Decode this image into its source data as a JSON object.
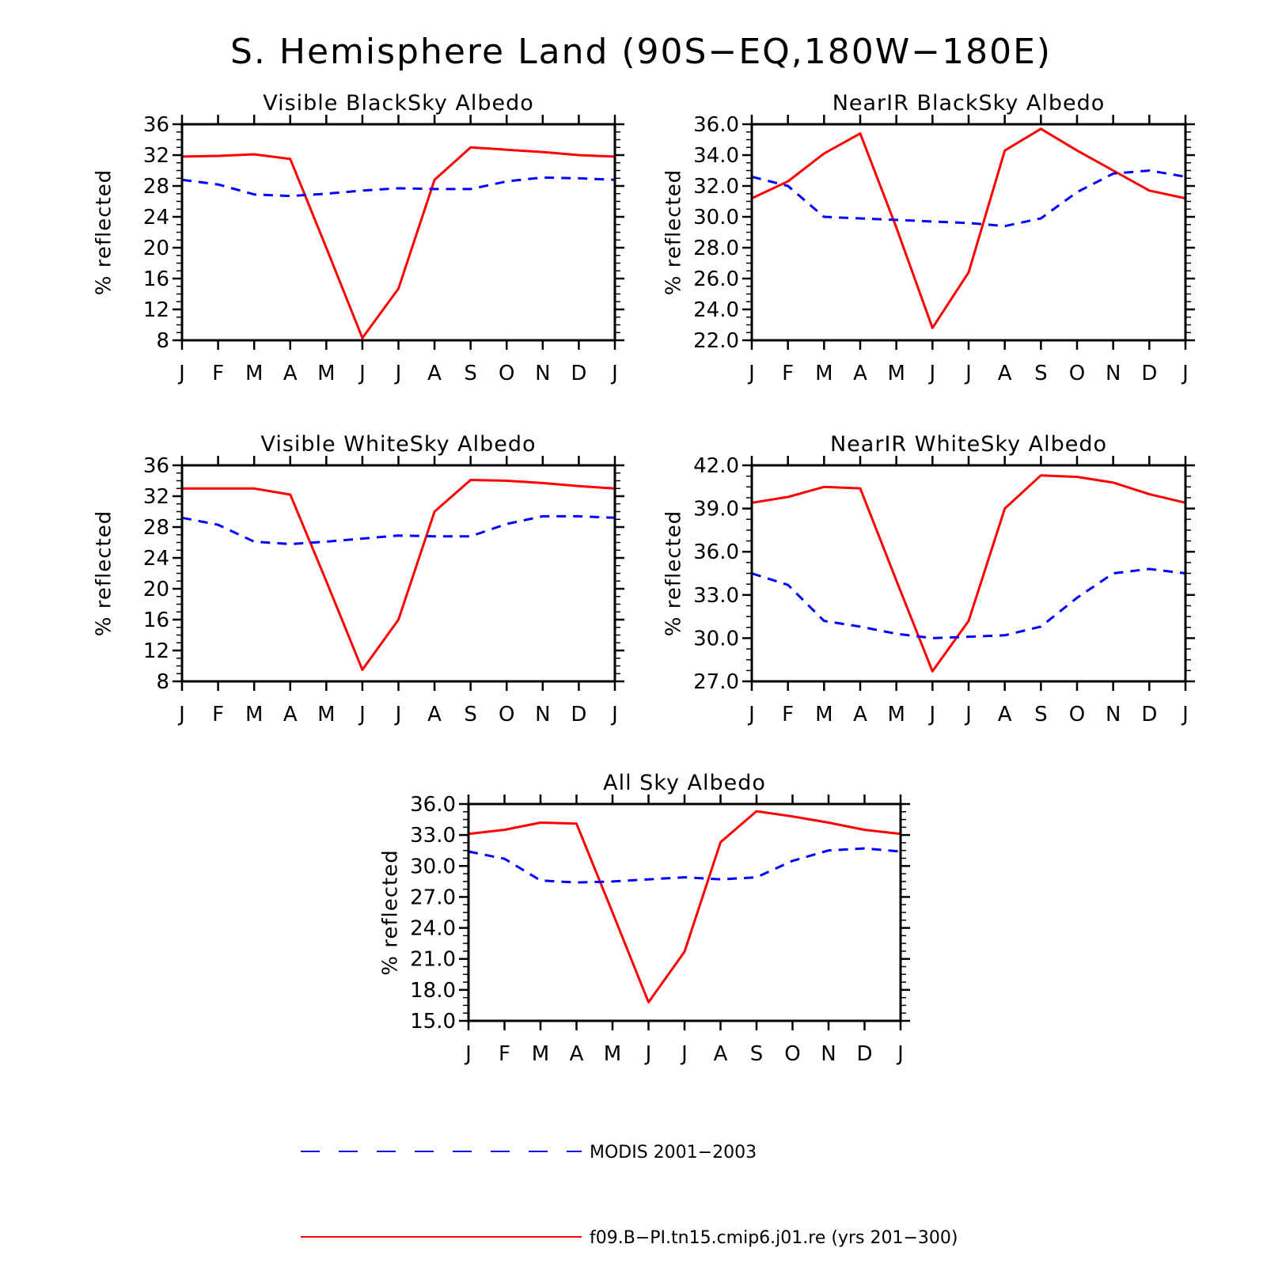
{
  "figure_title": "S. Hemisphere Land (90S−EQ,180W−180E)",
  "months": [
    "J",
    "F",
    "M",
    "A",
    "M",
    "J",
    "J",
    "A",
    "S",
    "O",
    "N",
    "D",
    "J"
  ],
  "legend": {
    "modis": "MODIS 2001−2003",
    "model": "f09.B−PI.tn15.cmip6.j01.re (yrs 201−300)"
  },
  "colors": {
    "model": "#ff0000",
    "modis": "#0000ff",
    "axis": "#000000"
  },
  "chart_data": [
    {
      "type": "line",
      "title": "Visible BlackSky Albedo",
      "ylabel": "% reflected",
      "ylim": [
        8,
        36
      ],
      "yticks": [
        "8",
        "12",
        "16",
        "20",
        "24",
        "28",
        "32",
        "36"
      ],
      "x": [
        "J",
        "F",
        "M",
        "A",
        "M",
        "J",
        "J",
        "A",
        "S",
        "O",
        "N",
        "D",
        "J"
      ],
      "series": [
        {
          "name": "f09.B−PI.tn15.cmip6.j01.re (yrs 201−300)",
          "style": "solid",
          "values": [
            31.8,
            31.9,
            32.1,
            31.5,
            20.0,
            8.3,
            14.7,
            28.8,
            33.0,
            32.7,
            32.4,
            32.0,
            31.8
          ]
        },
        {
          "name": "MODIS 2001−2003",
          "style": "dashed",
          "values": [
            28.8,
            28.2,
            26.9,
            26.7,
            27.0,
            27.4,
            27.7,
            27.6,
            27.6,
            28.6,
            29.1,
            29.0,
            28.8
          ]
        }
      ]
    },
    {
      "type": "line",
      "title": "NearIR BlackSky Albedo",
      "ylabel": "% reflected",
      "ylim": [
        22,
        36
      ],
      "yticks": [
        "22.0",
        "24.0",
        "26.0",
        "28.0",
        "30.0",
        "32.0",
        "34.0",
        "36.0"
      ],
      "x": [
        "J",
        "F",
        "M",
        "A",
        "M",
        "J",
        "J",
        "A",
        "S",
        "O",
        "N",
        "D",
        "J"
      ],
      "series": [
        {
          "name": "f09.B−PI.tn15.cmip6.j01.re (yrs 201−300)",
          "style": "solid",
          "values": [
            31.2,
            32.3,
            34.1,
            35.4,
            29.3,
            22.8,
            26.4,
            34.3,
            35.7,
            34.3,
            33.0,
            31.7,
            31.2
          ]
        },
        {
          "name": "MODIS 2001−2003",
          "style": "dashed",
          "values": [
            32.6,
            32.0,
            30.0,
            29.9,
            29.8,
            29.7,
            29.6,
            29.4,
            29.9,
            31.6,
            32.8,
            33.0,
            32.6
          ]
        }
      ]
    },
    {
      "type": "line",
      "title": "Visible WhiteSky Albedo",
      "ylabel": "% reflected",
      "ylim": [
        8,
        36
      ],
      "yticks": [
        "8",
        "12",
        "16",
        "20",
        "24",
        "28",
        "32",
        "36"
      ],
      "x": [
        "J",
        "F",
        "M",
        "A",
        "M",
        "J",
        "J",
        "A",
        "S",
        "O",
        "N",
        "D",
        "J"
      ],
      "series": [
        {
          "name": "f09.B−PI.tn15.cmip6.j01.re (yrs 201−300)",
          "style": "solid",
          "values": [
            33.0,
            33.0,
            33.0,
            32.2,
            21.0,
            9.5,
            16.0,
            30.0,
            34.1,
            34.0,
            33.7,
            33.3,
            33.0
          ]
        },
        {
          "name": "MODIS 2001−2003",
          "style": "dashed",
          "values": [
            29.2,
            28.3,
            26.1,
            25.8,
            26.1,
            26.5,
            26.9,
            26.8,
            26.8,
            28.4,
            29.4,
            29.4,
            29.2
          ]
        }
      ]
    },
    {
      "type": "line",
      "title": "NearIR WhiteSky Albedo",
      "ylabel": "% reflected",
      "ylim": [
        27,
        42
      ],
      "yticks": [
        "27.0",
        "30.0",
        "33.0",
        "36.0",
        "39.0",
        "42.0"
      ],
      "x": [
        "J",
        "F",
        "M",
        "A",
        "M",
        "J",
        "J",
        "A",
        "S",
        "O",
        "N",
        "D",
        "J"
      ],
      "series": [
        {
          "name": "f09.B−PI.tn15.cmip6.j01.re (yrs 201−300)",
          "style": "solid",
          "values": [
            39.4,
            39.8,
            40.5,
            40.4,
            34.0,
            27.7,
            31.2,
            39.0,
            41.3,
            41.2,
            40.8,
            40.0,
            39.4
          ]
        },
        {
          "name": "MODIS 2001−2003",
          "style": "dashed",
          "values": [
            34.5,
            33.7,
            31.2,
            30.8,
            30.3,
            30.0,
            30.1,
            30.2,
            30.8,
            32.8,
            34.5,
            34.8,
            34.5
          ]
        }
      ]
    },
    {
      "type": "line",
      "title": "All Sky Albedo",
      "ylabel": "% reflected",
      "ylim": [
        15,
        36
      ],
      "yticks": [
        "15.0",
        "18.0",
        "21.0",
        "24.0",
        "27.0",
        "30.0",
        "33.0",
        "36.0"
      ],
      "x": [
        "J",
        "F",
        "M",
        "A",
        "M",
        "J",
        "J",
        "A",
        "S",
        "O",
        "N",
        "D",
        "J"
      ],
      "series": [
        {
          "name": "f09.B−PI.tn15.cmip6.j01.re (yrs 201−300)",
          "style": "solid",
          "values": [
            33.1,
            33.5,
            34.2,
            34.1,
            25.5,
            16.8,
            21.7,
            32.3,
            35.3,
            34.8,
            34.2,
            33.5,
            33.1
          ]
        },
        {
          "name": "MODIS 2001−2003",
          "style": "dashed",
          "values": [
            31.4,
            30.7,
            28.6,
            28.4,
            28.5,
            28.7,
            28.9,
            28.7,
            28.9,
            30.5,
            31.5,
            31.7,
            31.4
          ]
        }
      ]
    }
  ]
}
